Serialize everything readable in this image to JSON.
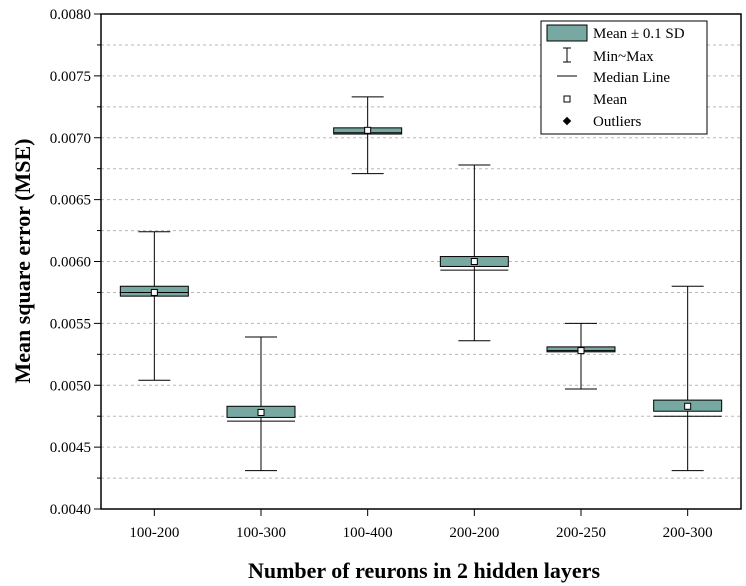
{
  "chart_data": {
    "type": "box",
    "xlabel": "Number of reurons in 2 hidden layers",
    "ylabel": "Mean square error (MSE)",
    "categories": [
      "100-200",
      "100-300",
      "100-400",
      "200-200",
      "200-250",
      "200-300"
    ],
    "ylim": [
      0.004,
      0.008
    ],
    "yticks": [
      "0.0040",
      "0.0045",
      "0.0050",
      "0.0055",
      "0.0060",
      "0.0065",
      "0.0070",
      "0.0075",
      "0.0080"
    ],
    "minor_gridlines": true,
    "grid_style": "dashed",
    "boxes": [
      {
        "category": "100-200",
        "min": 0.00504,
        "max": 0.00624,
        "mean": 0.00575,
        "median": 0.00575,
        "box_low": 0.00572,
        "box_high": 0.0058
      },
      {
        "category": "100-300",
        "min": 0.00431,
        "max": 0.00539,
        "mean": 0.00478,
        "median": 0.00471,
        "box_low": 0.00474,
        "box_high": 0.00483
      },
      {
        "category": "100-400",
        "min": 0.00671,
        "max": 0.00733,
        "mean": 0.00706,
        "median": 0.00704,
        "box_low": 0.00703,
        "box_high": 0.00708
      },
      {
        "category": "200-200",
        "min": 0.00536,
        "max": 0.00678,
        "mean": 0.006,
        "median": 0.00593,
        "box_low": 0.00596,
        "box_high": 0.00604
      },
      {
        "category": "200-250",
        "min": 0.00497,
        "max": 0.0055,
        "mean": 0.00528,
        "median": 0.00528,
        "box_low": 0.00527,
        "box_high": 0.00531
      },
      {
        "category": "200-300",
        "min": 0.00431,
        "max": 0.0058,
        "mean": 0.00483,
        "median": 0.00475,
        "box_low": 0.00479,
        "box_high": 0.00488
      }
    ],
    "box_color": "#78a8a2",
    "legend": {
      "position": "top-right",
      "entries": [
        "Mean ± 0.1 SD",
        "Min~Max",
        "Median Line",
        "Mean",
        "Outliers"
      ]
    }
  }
}
